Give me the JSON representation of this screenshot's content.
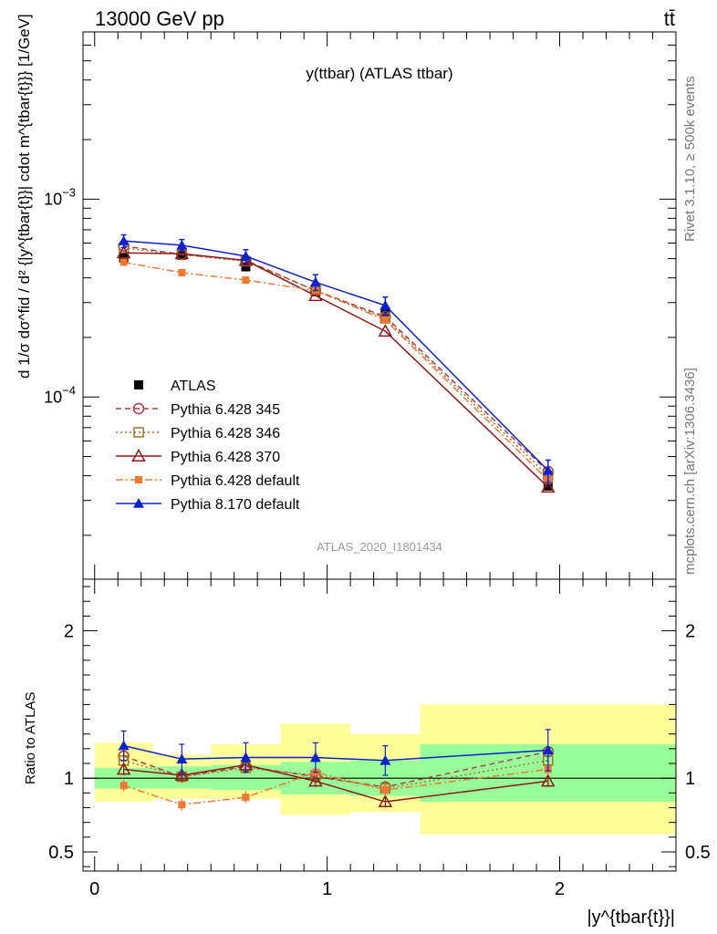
{
  "header": {
    "left": "13000 GeV pp",
    "right": "tt̄"
  },
  "right_text": {
    "rivet": "Rivet 3.1.10, ≥ 500k events",
    "mcplots": "mcplots.cern.ch [arXiv:1306.3436]"
  },
  "chart_data": [
    {
      "type": "line",
      "panel": "main",
      "title": "y(ttbar) (ATLAS ttbar)",
      "watermark": "ATLAS_2020_I1801434",
      "ylabel": "d 1/σ dσ^fid / d² {|y^{tbar{t}}| cdot m^{tbar{t}}} [1/GeV]",
      "yscale": "log",
      "ylim": [
        1.2e-05,
        0.007
      ],
      "xlim": [
        -0.05,
        2.5
      ],
      "x": [
        0.125,
        0.375,
        0.65,
        0.95,
        1.25,
        1.95
      ],
      "y_ticks": [
        {
          "value": 0.001,
          "label": "10",
          "exp": "−3"
        },
        {
          "value": 0.0001,
          "label": "10",
          "exp": "−4"
        }
      ],
      "legend_position": "middle-left",
      "series": [
        {
          "name": "ATLAS",
          "color": "#000000",
          "marker": "filled-square",
          "values": [
            0.000505,
            0.00052,
            0.000455,
            0.00034,
            0.00027,
            3.55e-05
          ]
        },
        {
          "name": "Pythia 6.428 345",
          "color": "#b03a48",
          "marker": "open-circle",
          "dash": "6,4",
          "values": [
            0.00058,
            0.000525,
            0.00049,
            0.000345,
            0.000255,
            4.2e-05
          ]
        },
        {
          "name": "Pythia 6.428 346",
          "color": "#a0742a",
          "marker": "open-square",
          "dash": "2,3",
          "values": [
            0.000565,
            0.000525,
            0.000485,
            0.000345,
            0.00025,
            4e-05
          ]
        },
        {
          "name": "Pythia 6.428 370",
          "color": "#8b1a1a",
          "marker": "open-triangle",
          "dash": "",
          "values": [
            0.000535,
            0.00053,
            0.00049,
            0.000325,
            0.000215,
            3.5e-05
          ]
        },
        {
          "name": "Pythia 6.428 default",
          "color": "#f07830",
          "marker": "filled-square-small",
          "dash": "8,3,2,3",
          "values": [
            0.00048,
            0.000425,
            0.00039,
            0.000345,
            0.000245,
            3.8e-05
          ]
        },
        {
          "name": "Pythia 8.170 default",
          "color": "#0a22cc",
          "marker": "filled-triangle",
          "dash": "",
          "values": [
            0.000615,
            0.000585,
            0.000515,
            0.00038,
            0.00029,
            4.25e-05
          ]
        }
      ],
      "error_bars": {
        "Pythia 8.170 default": [
          4.5e-05,
          4e-05,
          4e-05,
          3.5e-05,
          3e-05,
          5.5e-06
        ]
      }
    },
    {
      "type": "line",
      "panel": "ratio",
      "ylabel": "Ratio to ATLAS",
      "xlabel": "|y^{tbar{t}}|",
      "ylim": [
        0.37,
        2.35
      ],
      "xlim": [
        -0.05,
        2.5
      ],
      "y_ticks": [
        0.5,
        1,
        2
      ],
      "y_tick_labels": [
        "0.5",
        "1",
        "2"
      ],
      "x_ticks": [
        0,
        1,
        2
      ],
      "x_tick_labels": [
        "0",
        "1",
        "2"
      ],
      "reference_line": 1,
      "bins": [
        [
          0.0,
          0.25
        ],
        [
          0.25,
          0.5
        ],
        [
          0.5,
          0.8
        ],
        [
          0.8,
          1.1
        ],
        [
          1.1,
          1.4
        ],
        [
          1.4,
          2.5
        ]
      ],
      "band_green": [
        [
          0.93,
          1.07
        ],
        [
          0.93,
          1.08
        ],
        [
          0.92,
          1.09
        ],
        [
          0.89,
          1.11
        ],
        [
          0.88,
          1.12
        ],
        [
          0.84,
          1.23
        ]
      ],
      "band_yellow": [
        [
          0.84,
          1.24
        ],
        [
          0.86,
          1.16
        ],
        [
          0.86,
          1.23
        ],
        [
          0.75,
          1.37
        ],
        [
          0.77,
          1.3
        ],
        [
          0.62,
          1.5
        ]
      ],
      "x": [
        0.125,
        0.375,
        0.65,
        0.95,
        1.25,
        1.95
      ],
      "series": [
        {
          "name": "Pythia 6.428 345",
          "color": "#b03a48",
          "marker": "open-circle",
          "dash": "6,4",
          "values": [
            1.15,
            1.01,
            1.08,
            1.01,
            0.94,
            1.18
          ]
        },
        {
          "name": "Pythia 6.428 346",
          "color": "#a0742a",
          "marker": "open-square",
          "dash": "2,3",
          "values": [
            1.12,
            1.01,
            1.07,
            1.02,
            0.93,
            1.12
          ]
        },
        {
          "name": "Pythia 6.428 370",
          "color": "#8b1a1a",
          "marker": "open-triangle",
          "dash": "",
          "values": [
            1.06,
            1.02,
            1.09,
            0.98,
            0.84,
            0.98
          ]
        },
        {
          "name": "Pythia 6.428 default",
          "color": "#f07830",
          "marker": "filled-square-small",
          "dash": "8,3,2,3",
          "values": [
            0.95,
            0.82,
            0.87,
            1.04,
            0.92,
            1.06
          ]
        },
        {
          "name": "Pythia 8.170 default",
          "color": "#0a22cc",
          "marker": "filled-triangle",
          "dash": "",
          "values": [
            1.22,
            1.13,
            1.14,
            1.14,
            1.12,
            1.19
          ]
        }
      ],
      "error_bars": {
        "Pythia 8.170 default": [
          0.1,
          0.1,
          0.1,
          0.1,
          0.1,
          0.14
        ]
      }
    }
  ]
}
